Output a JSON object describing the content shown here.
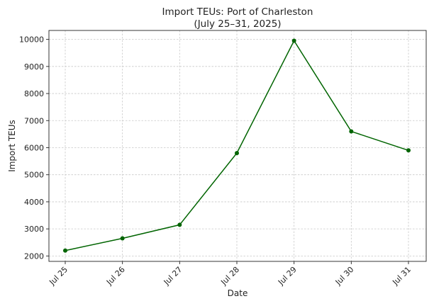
{
  "chart_data": {
    "type": "line",
    "title": "Import TEUs: Port of Charleston",
    "subtitle": "(July 25–31, 2025)",
    "xlabel": "Date",
    "ylabel": "Import TEUs",
    "categories": [
      "Jul 25",
      "Jul 26",
      "Jul 27",
      "Jul 28",
      "Jul 29",
      "Jul 30",
      "Jul 31"
    ],
    "series": [
      {
        "values": [
          2200,
          2650,
          3150,
          5800,
          9950,
          6600,
          5900
        ],
        "color": "#006400"
      }
    ],
    "yticks": [
      2000,
      3000,
      4000,
      5000,
      6000,
      7000,
      8000,
      9000,
      10000
    ],
    "ylim": [
      1800,
      10330
    ],
    "grid": true,
    "legend": "none"
  }
}
